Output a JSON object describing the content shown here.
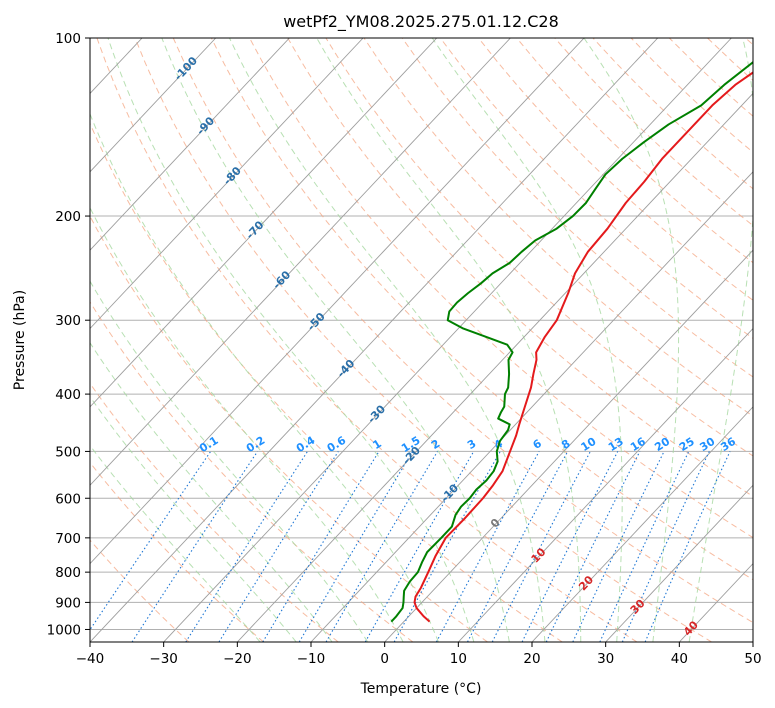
{
  "chart_data": {
    "type": "line",
    "title": "wetPf2_YM08.2025.275.01.12.C28",
    "xlabel": "Temperature (°C)",
    "ylabel": "Pressure (hPa)",
    "xlim": [
      -40,
      50
    ],
    "ylim": [
      1050,
      100
    ],
    "y_scale": "log",
    "grid": true,
    "x_ticks": [
      -40,
      -30,
      -20,
      -10,
      0,
      10,
      20,
      30,
      40,
      50
    ],
    "y_ticks": [
      1000,
      900,
      800,
      700,
      600,
      500,
      400,
      300,
      200,
      100
    ],
    "series": [
      {
        "color": "#e41a1c",
        "pressure": [
          970,
          950,
          920,
          900,
          880,
          850,
          800,
          750,
          700,
          650,
          600,
          570,
          540,
          500,
          470,
          450,
          420,
          390,
          370,
          350,
          340,
          320,
          300,
          270,
          250,
          230,
          210,
          190,
          175,
          160,
          145,
          130,
          120,
          110,
          100
        ],
        "x": [
          3.5,
          2.0,
          0.0,
          -1.0,
          -1.6,
          -2.0,
          -3.0,
          -4.1,
          -5.0,
          -4.9,
          -5.0,
          -5.3,
          -5.8,
          -7.3,
          -8.5,
          -9.5,
          -11.0,
          -12.6,
          -14.0,
          -15.4,
          -16.4,
          -17.2,
          -17.7,
          -19.6,
          -21.2,
          -22.2,
          -22.5,
          -23.3,
          -23.5,
          -24.0,
          -24.0,
          -24.0,
          -23.5,
          -22.0,
          -20.3
        ]
      },
      {
        "color": "#008000",
        "pressure": [
          970,
          950,
          920,
          900,
          880,
          860,
          830,
          800,
          770,
          740,
          700,
          670,
          640,
          620,
          600,
          580,
          560,
          540,
          520,
          500,
          480,
          460,
          450,
          440,
          430,
          420,
          400,
          390,
          370,
          350,
          340,
          330,
          320,
          310,
          300,
          290,
          280,
          270,
          260,
          250,
          240,
          230,
          220,
          210,
          200,
          190,
          180,
          170,
          160,
          150,
          140,
          130,
          120,
          110,
          100
        ],
        "x": [
          -1.7,
          -1.7,
          -1.9,
          -2.5,
          -3.2,
          -3.9,
          -4.3,
          -4.4,
          -5.1,
          -5.7,
          -5.6,
          -5.6,
          -6.6,
          -6.9,
          -6.8,
          -7.0,
          -6.8,
          -7.0,
          -7.7,
          -9.1,
          -10.0,
          -10.3,
          -10.8,
          -13.1,
          -13.5,
          -13.8,
          -15.3,
          -15.7,
          -17.3,
          -19.2,
          -19.6,
          -21.3,
          -25.2,
          -29.3,
          -32.5,
          -33.4,
          -33.5,
          -33.2,
          -32.7,
          -32.4,
          -31.4,
          -31.2,
          -30.8,
          -29.4,
          -28.8,
          -28.7,
          -29.2,
          -29.7,
          -29.4,
          -28.6,
          -27.5,
          -25.5,
          -25.0,
          -24.0,
          -22.0
        ]
      }
    ],
    "isotherm_labels": [
      "-100",
      "-90",
      "-80",
      "-70",
      "-60",
      "-50",
      "-40",
      "-30",
      "-20",
      "-10",
      "0",
      "10",
      "20",
      "30",
      "40"
    ],
    "mixing_ratio_labels": [
      "0.1",
      "0.2",
      "0.4",
      "0.6",
      "1",
      "1.5",
      "2",
      "3",
      "4",
      "6",
      "8",
      "10",
      "13",
      "16",
      "20",
      "25",
      "30",
      "36"
    ],
    "mixing_ratio_values": [
      0.1,
      0.2,
      0.4,
      0.6,
      1,
      1.5,
      2,
      3,
      4,
      6,
      8,
      10,
      13,
      16,
      20,
      25,
      30,
      36
    ],
    "colors": {
      "temperature": "#e41a1c",
      "dewpoint": "#008000",
      "isotherm": "#9e9e9e",
      "isotherm_label": "#2a6fa8",
      "isotherm_label_warm": "#d62728",
      "isotherm_label_zero": "#777777",
      "dry_adiabat": "#f4a582",
      "moist_adiabat": "#a6d8a0",
      "mixing_ratio": "#1f77d4",
      "mixing_ratio_label": "#1e90ff",
      "grid": "#b0b0b0"
    }
  }
}
